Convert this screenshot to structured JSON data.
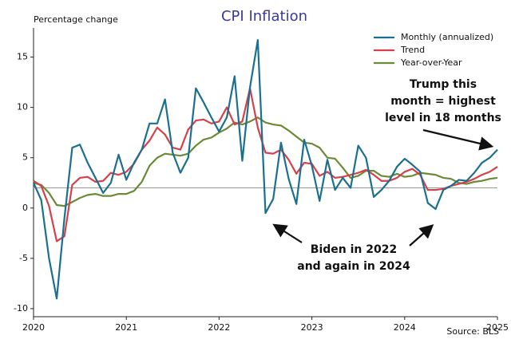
{
  "chart_data": {
    "type": "line",
    "title": "CPI Inflation",
    "y_label": "Percentage change",
    "source": "Source: BLS",
    "x": [
      2020,
      2020.083,
      2020.167,
      2020.25,
      2020.333,
      2020.417,
      2020.5,
      2020.583,
      2020.667,
      2020.75,
      2020.833,
      2020.917,
      2021,
      2021.083,
      2021.167,
      2021.25,
      2021.333,
      2021.417,
      2021.5,
      2021.583,
      2021.667,
      2021.75,
      2021.833,
      2021.917,
      2022,
      2022.083,
      2022.167,
      2022.25,
      2022.333,
      2022.417,
      2022.5,
      2022.583,
      2022.667,
      2022.75,
      2022.833,
      2022.917,
      2023,
      2023.083,
      2023.167,
      2023.25,
      2023.333,
      2023.417,
      2023.5,
      2023.583,
      2023.667,
      2023.75,
      2023.833,
      2023.917,
      2024,
      2024.083,
      2024.167,
      2024.25,
      2024.333,
      2024.417,
      2024.5,
      2024.583,
      2024.667,
      2024.75,
      2024.833,
      2024.917,
      2025
    ],
    "series": [
      {
        "name": "Monthly (annualized)",
        "color": "#1b6f8f",
        "values": [
          2.5,
          0.8,
          -5.0,
          -9.0,
          -1.0,
          6.0,
          6.3,
          4.5,
          3.0,
          1.5,
          2.5,
          5.3,
          2.8,
          4.5,
          5.8,
          8.4,
          8.4,
          10.8,
          5.5,
          3.5,
          5.0,
          11.9,
          10.5,
          9.0,
          7.6,
          9.0,
          13.1,
          4.7,
          12.0,
          16.7,
          -0.5,
          0.9,
          6.5,
          2.9,
          0.4,
          6.8,
          4.2,
          0.7,
          4.8,
          1.8,
          3.0,
          2.0,
          6.2,
          5.0,
          1.1,
          1.8,
          2.7,
          4.1,
          4.9,
          4.3,
          3.6,
          0.5,
          -0.1,
          1.8,
          2.2,
          2.8,
          2.7,
          3.5,
          4.5,
          5.0,
          5.8
        ]
      },
      {
        "name": "Trend",
        "color": "#d5404a",
        "values": [
          2.7,
          2.2,
          0.2,
          -3.3,
          -2.8,
          2.3,
          3.0,
          3.1,
          2.6,
          2.7,
          3.5,
          3.3,
          3.6,
          4.4,
          5.8,
          6.7,
          8.0,
          7.3,
          6.0,
          5.8,
          7.8,
          8.7,
          8.8,
          8.4,
          8.6,
          10.0,
          8.3,
          8.6,
          11.9,
          8.0,
          5.5,
          5.4,
          5.8,
          4.8,
          3.4,
          4.5,
          4.4,
          3.2,
          3.6,
          3.0,
          3.1,
          3.3,
          3.5,
          3.8,
          3.3,
          2.7,
          2.7,
          3.0,
          3.6,
          3.9,
          3.3,
          1.8,
          1.8,
          1.9,
          2.2,
          2.4,
          2.6,
          2.9,
          3.3,
          3.6,
          4.1
        ]
      },
      {
        "name": "Year-over-Year",
        "color": "#6a8a35",
        "values": [
          2.5,
          2.3,
          1.5,
          0.3,
          0.2,
          0.6,
          1.0,
          1.3,
          1.4,
          1.2,
          1.2,
          1.4,
          1.4,
          1.7,
          2.6,
          4.2,
          5.0,
          5.4,
          5.3,
          5.2,
          5.4,
          6.2,
          6.8,
          7.0,
          7.5,
          7.9,
          8.5,
          8.3,
          8.6,
          9.0,
          8.5,
          8.3,
          8.2,
          7.7,
          7.1,
          6.5,
          6.4,
          6.0,
          5.0,
          4.9,
          4.0,
          3.0,
          3.2,
          3.7,
          3.7,
          3.2,
          3.1,
          3.4,
          3.1,
          3.2,
          3.5,
          3.4,
          3.3,
          3.0,
          2.9,
          2.5,
          2.4,
          2.6,
          2.7,
          2.9,
          3.0
        ]
      }
    ],
    "hline": 2,
    "xlim": [
      2020,
      2025
    ],
    "xticks": [
      2020,
      2021,
      2022,
      2023,
      2024,
      2025
    ],
    "ylim": [
      -10.8,
      17.9
    ],
    "yticks": [
      -10,
      -5,
      0,
      5,
      10,
      15
    ],
    "legend": "upper right",
    "annotations": [
      {
        "lines": [
          "Trump this",
          "month = highest",
          "level in 18 months"
        ]
      },
      {
        "lines": [
          "Biden in 2022",
          "and again in 2024"
        ]
      }
    ]
  }
}
